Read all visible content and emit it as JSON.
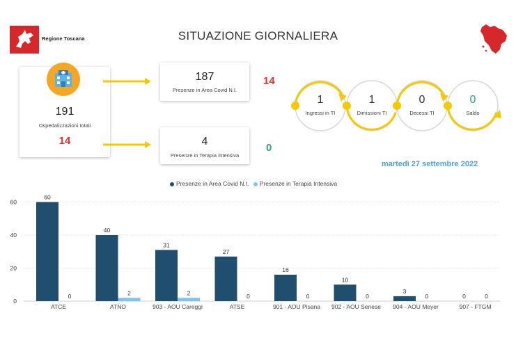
{
  "header": {
    "logo_text": "Regione Toscana",
    "title": "SITUAZIONE GIORNALIERA"
  },
  "summary": {
    "total_value": "191",
    "total_label": "Ospedalizzazioni totali",
    "total_delta": "14",
    "covid_value": "187",
    "covid_label": "Presenze in Area Covid N.I.",
    "covid_delta": "14",
    "ti_value": "4",
    "ti_label": "Presenze in Terapia Intensiva",
    "ti_delta": "0"
  },
  "flow": {
    "items": [
      {
        "value": "1",
        "label": "Ingressi in TI"
      },
      {
        "value": "1",
        "label": "Dimissioni TI"
      },
      {
        "value": "0",
        "label": "Decessi TI"
      },
      {
        "value": "0",
        "label": "Saldo"
      }
    ]
  },
  "date": "martedì 27 settembre 2022",
  "colors": {
    "red": "#e0342d",
    "green": "#2ea37a",
    "yellow": "#f5c800",
    "dark_blue": "#1f4e6e",
    "light_blue": "#7ec5ee",
    "date_blue": "#4a9fe0"
  },
  "chart_data": {
    "type": "bar",
    "categories": [
      "ATCE",
      "ATNO",
      "903 - AOU Careggi",
      "ATSE",
      "901 - AOU Pisana",
      "902 - AOU Senese",
      "904 - AOU Meyer",
      "907 - FTGM"
    ],
    "series": [
      {
        "name": "Presenze in Area Covid N.I.",
        "color": "#1f4e6e",
        "values": [
          60,
          40,
          31,
          27,
          16,
          10,
          3,
          0
        ]
      },
      {
        "name": "Presenze in Terapia Intensiva",
        "color": "#7ec5ee",
        "values": [
          0,
          2,
          2,
          0,
          0,
          0,
          0,
          0
        ]
      }
    ],
    "yticks": [
      0,
      20,
      40,
      60
    ],
    "ylim": [
      0,
      64
    ],
    "legend": "top-center",
    "grid": true
  }
}
